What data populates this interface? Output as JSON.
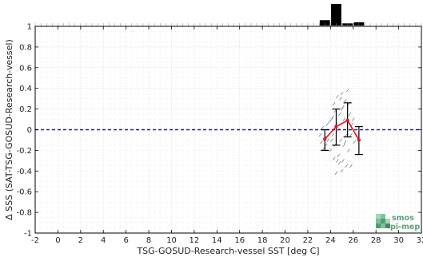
{
  "chart_data": {
    "type": "line",
    "xlabel": "TSG-GOSUD-Research-vessel SST [deg C]",
    "ylabel": "Δ SSS (SAT-TSG-GOSUD-Research-vessel)",
    "xlim": [
      -2,
      32
    ],
    "ylim": [
      -1,
      1
    ],
    "x_ticks": [
      -2,
      0,
      2,
      4,
      6,
      8,
      10,
      12,
      14,
      16,
      18,
      20,
      22,
      24,
      26,
      28,
      30,
      32
    ],
    "y_ticks": [
      -1,
      -0.8,
      -0.6,
      -0.4,
      -0.2,
      0,
      0.2,
      0.4,
      0.6,
      0.8,
      1
    ],
    "x_tick_labels": [
      "-2",
      "0",
      "2",
      "4",
      "6",
      "8",
      "10",
      "12",
      "14",
      "16",
      "18",
      "20",
      "22",
      "24",
      "26",
      "28",
      "30",
      "32"
    ],
    "y_tick_labels": [
      "-1",
      "-0.8",
      "-0.6",
      "-0.4",
      "-0.2",
      "0",
      "0.2",
      "0.4",
      "0.6",
      "0.8",
      "1"
    ],
    "grid": true,
    "reference_line": {
      "y": 0,
      "color": "#1a1acc",
      "style": "dashed"
    },
    "series": [
      {
        "color": "#e8141e",
        "x": [
          23.5,
          24.5,
          25.5,
          26.5
        ],
        "y": [
          -0.09,
          0.03,
          0.09,
          -0.1
        ],
        "error_low": [
          -0.2,
          -0.15,
          -0.07,
          -0.24
        ],
        "error_high": [
          0.0,
          0.2,
          0.26,
          0.03
        ]
      }
    ],
    "histogram": {
      "color": "#000000",
      "bins": [
        {
          "x": 23.5,
          "count": 0.25
        },
        {
          "x": 24.5,
          "count": 1.0
        },
        {
          "x": 25.5,
          "count": 0.1
        },
        {
          "x": 26.5,
          "count": 0.15
        }
      ]
    },
    "scatter_cloud": {
      "color": "#808080",
      "points": [
        [
          23.1,
          -0.05
        ],
        [
          23.2,
          -0.12
        ],
        [
          23.3,
          0.02
        ],
        [
          23.4,
          -0.18
        ],
        [
          23.5,
          -0.08
        ],
        [
          23.6,
          -0.15
        ],
        [
          23.7,
          0.05
        ],
        [
          23.8,
          -0.1
        ],
        [
          24.0,
          -0.2
        ],
        [
          24.1,
          0.1
        ],
        [
          24.2,
          -0.05
        ],
        [
          24.3,
          0.25
        ],
        [
          24.4,
          -0.15
        ],
        [
          24.5,
          0.05
        ],
        [
          24.6,
          0.32
        ],
        [
          24.7,
          -0.25
        ],
        [
          24.8,
          0.15
        ],
        [
          24.9,
          -0.1
        ],
        [
          25.0,
          0.2
        ],
        [
          25.1,
          -0.3
        ],
        [
          25.2,
          0.1
        ],
        [
          25.3,
          0.28
        ],
        [
          25.4,
          -0.05
        ],
        [
          25.5,
          0.38
        ],
        [
          25.6,
          -0.2
        ],
        [
          25.7,
          0.15
        ],
        [
          25.8,
          -0.35
        ],
        [
          25.9,
          0.05
        ],
        [
          24.2,
          0.12
        ],
        [
          24.6,
          -0.3
        ],
        [
          25.0,
          -0.4
        ],
        [
          24.8,
          -0.32
        ],
        [
          24.9,
          0.3
        ],
        [
          25.2,
          -0.15
        ],
        [
          24.4,
          0.18
        ],
        [
          24.7,
          0.0
        ],
        [
          25.3,
          -0.12
        ],
        [
          25.1,
          0.22
        ],
        [
          24.3,
          -0.28
        ],
        [
          25.6,
          0.25
        ],
        [
          25.4,
          -0.35
        ],
        [
          24.1,
          -0.1
        ],
        [
          23.9,
          0.08
        ],
        [
          25.8,
          -0.05
        ],
        [
          26.0,
          0.1
        ],
        [
          26.1,
          -0.12
        ],
        [
          24.5,
          -0.42
        ],
        [
          25.0,
          0.35
        ]
      ]
    }
  },
  "logo": {
    "line1": "smos",
    "line2": "pi-mep"
  }
}
